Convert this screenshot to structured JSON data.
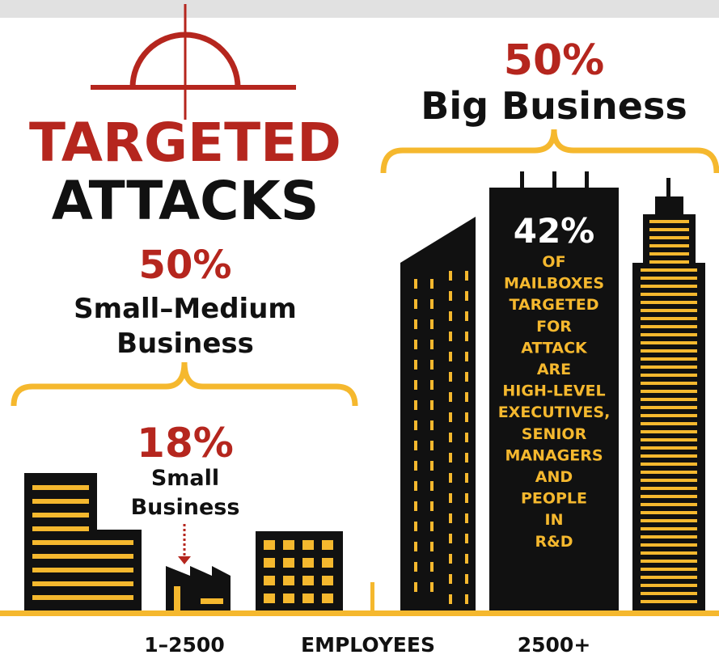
{
  "title": {
    "line1": "TARGETED",
    "line2": "ATTACKS"
  },
  "small_medium": {
    "percent": "50%",
    "line1": "Small–Medium",
    "line2": "Business"
  },
  "small": {
    "percent": "18%",
    "line1": "Small",
    "line2": "Business"
  },
  "big": {
    "percent": "50%",
    "label": "Big Business"
  },
  "mailboxes": {
    "percent": "42%",
    "lines": [
      "OF",
      "MAILBOXES",
      "TARGETED",
      "FOR",
      "ATTACK",
      "ARE",
      "HIGH-LEVEL",
      "EXECUTIVES,",
      "SENIOR",
      "MANAGERS",
      "AND",
      "PEOPLE",
      "IN",
      "R&D"
    ]
  },
  "axis": {
    "left": "1–2500",
    "middle": "EMPLOYEES",
    "right": "2500+"
  }
}
